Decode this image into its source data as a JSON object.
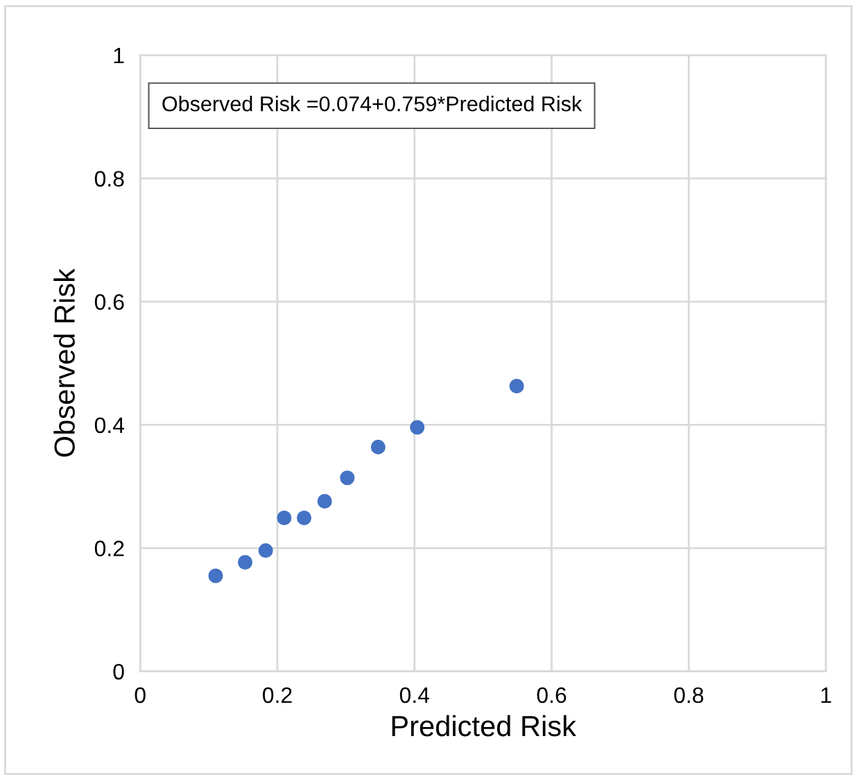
{
  "chart_data": {
    "type": "scatter",
    "xlabel": "Predicted Risk",
    "ylabel": "Observed Risk",
    "annotations": [
      "Observed Risk =0.074+0.759*Predicted Risk"
    ],
    "x": [
      0.11,
      0.153,
      0.183,
      0.21,
      0.239,
      0.269,
      0.302,
      0.347,
      0.404,
      0.549
    ],
    "series": [
      {
        "color": "#4472c4",
        "values": [
          0.155,
          0.177,
          0.196,
          0.249,
          0.249,
          0.276,
          0.314,
          0.364,
          0.396,
          0.463
        ]
      }
    ],
    "xlim": [
      0,
      1
    ],
    "ylim": [
      0,
      1
    ],
    "xticks": [
      0,
      0.2,
      0.4,
      0.6,
      0.8,
      1
    ],
    "yticks": [
      0,
      0.2,
      0.4,
      0.6,
      0.8,
      1
    ],
    "grid": true,
    "marker": "circle"
  }
}
